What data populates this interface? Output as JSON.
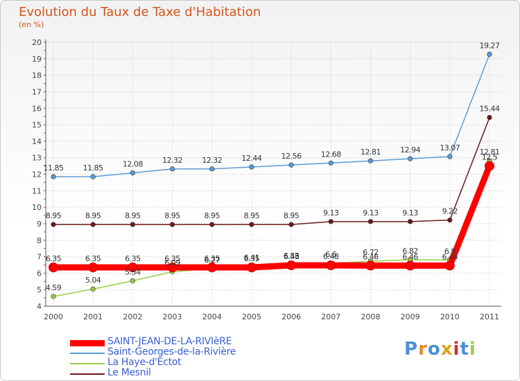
{
  "chart_data": {
    "type": "line",
    "title": "Evolution du Taux de Taxe d'Habitation",
    "unit_label": "(en %)",
    "x": [
      "2000",
      "2001",
      "2002",
      "2003",
      "2004",
      "2005",
      "2006",
      "2007",
      "2008",
      "2009",
      "2010",
      "2011"
    ],
    "ylim": [
      4,
      20
    ],
    "yticks": [
      4,
      5,
      6,
      7,
      8,
      9,
      10,
      11,
      12,
      13,
      14,
      15,
      16,
      17,
      18,
      19,
      20
    ],
    "grid": true,
    "legend_position": "bottom-left",
    "series": [
      {
        "name": "SAINT-JEAN-DE-LA-RIVIèRE",
        "color": "#ff0000",
        "width": "thick",
        "values": [
          6.35,
          6.35,
          6.35,
          6.35,
          6.35,
          6.35,
          6.48,
          6.48,
          6.46,
          6.46,
          6.46,
          12.5
        ],
        "labels": [
          "6.35",
          "6.35",
          "6.35",
          "6.35",
          "6.35",
          "6.35",
          "6.48",
          "6.48",
          "6.46",
          "6.46",
          "6.46",
          "12.5"
        ]
      },
      {
        "name": "Saint-Georges-de-la-Rivière",
        "color": "#5b9bd5",
        "width": "thin",
        "values": [
          11.85,
          11.85,
          12.08,
          12.32,
          12.32,
          12.44,
          12.56,
          12.68,
          12.81,
          12.94,
          13.07,
          19.27
        ],
        "labels": [
          "11.85",
          "11.85",
          "12.08",
          "12.32",
          "12.32",
          "12.44",
          "12.56",
          "12.68",
          "12.81",
          "12.94",
          "13.07",
          "19.27"
        ]
      },
      {
        "name": "La Haye-d'Ectot",
        "color": "#99cc44",
        "width": "thin",
        "values": [
          4.59,
          5.04,
          5.54,
          6.09,
          6.27,
          6.41,
          6.53,
          6.6,
          6.72,
          6.82,
          6.8,
          12.81
        ],
        "labels": [
          "4.59",
          "5.04",
          "5.54",
          "6.09",
          "6.27",
          "6.41",
          "6.53",
          "6.6",
          "6.72",
          "6.82",
          "6.8",
          "12.81"
        ]
      },
      {
        "name": "Le Mesnil",
        "color": "#6b1a1a",
        "width": "thin",
        "values": [
          8.95,
          8.95,
          8.95,
          8.95,
          8.95,
          8.95,
          8.95,
          9.13,
          9.13,
          9.13,
          9.22,
          15.44
        ],
        "labels": [
          "8.95",
          "8.95",
          "8.95",
          "8.95",
          "8.95",
          "8.95",
          "8.95",
          "9.13",
          "9.13",
          "9.13",
          "9.22",
          "15.44"
        ]
      }
    ]
  },
  "logo_text": "Proxiti",
  "logo_colors": [
    "#4a8fd4",
    "#e88a2a",
    "#4a8fd4",
    "#e0a020",
    "#d03030",
    "#4a8fd4",
    "#99cc44"
  ]
}
